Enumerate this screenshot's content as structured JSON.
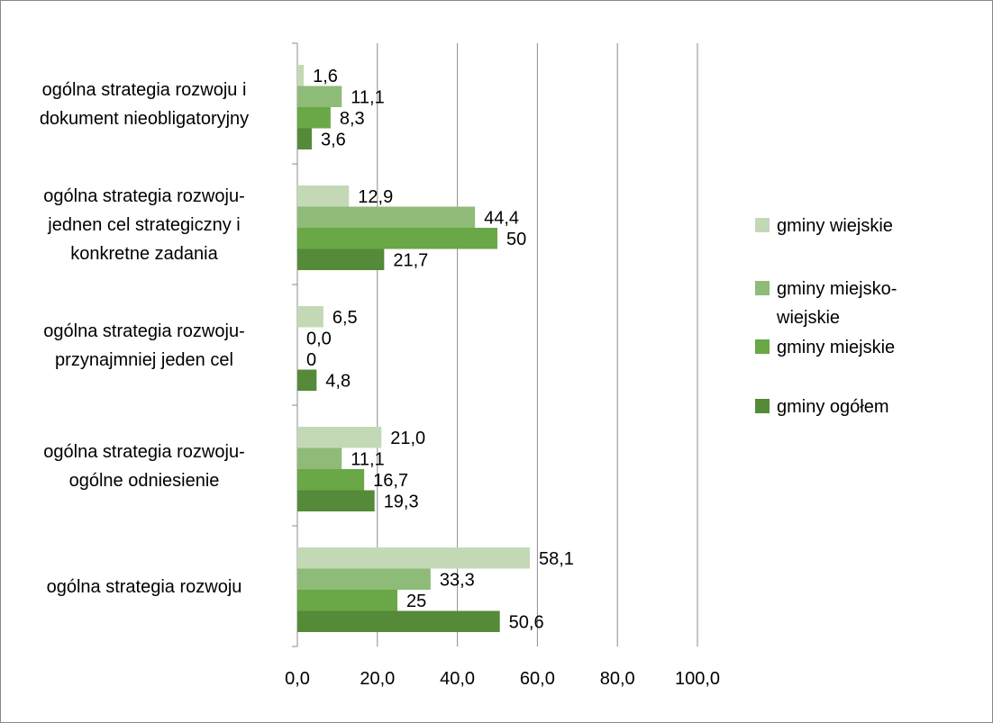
{
  "chart_data": {
    "type": "bar",
    "orientation": "horizontal",
    "categories": [
      [
        "ogólna strategia rozwoju i",
        "dokument nieobligatoryjny"
      ],
      [
        "ogólna strategia rozwoju-",
        "jednen cel strategiczny i",
        "konkretne zadania"
      ],
      [
        "ogólna strategia rozwoju-",
        "przynajmniej jeden cel"
      ],
      [
        "ogólna strategia rozwoju-",
        "ogólne odniesienie"
      ],
      [
        "ogólna strategia rozwoju"
      ]
    ],
    "series": [
      {
        "name": "gminy wiejskie",
        "color": "#c3d9b6",
        "values": [
          1.6,
          12.9,
          6.5,
          21.0,
          58.1
        ],
        "labels": [
          "1,6",
          "12,9",
          "6,5",
          "21,0",
          "58,1"
        ]
      },
      {
        "name": "gminy miejsko-wiejskie",
        "name_lines": [
          "gminy miejsko-",
          "wiejskie"
        ],
        "color": "#8fbb78",
        "values": [
          11.1,
          44.4,
          0.0,
          11.1,
          33.3
        ],
        "labels": [
          "11,1",
          "44,4",
          "0,0",
          "11,1",
          "33,3"
        ]
      },
      {
        "name": "gminy miejskie",
        "color": "#6aa746",
        "values": [
          8.3,
          50,
          0,
          16.7,
          25
        ],
        "labels": [
          "8,3",
          "50",
          "0",
          "16,7",
          "25"
        ]
      },
      {
        "name": "gminy ogółem",
        "color": "#548a38",
        "values": [
          3.6,
          21.7,
          4.8,
          19.3,
          50.6
        ],
        "labels": [
          "3,6",
          "21,7",
          "4,8",
          "19,3",
          "50,6"
        ]
      }
    ],
    "xlim": [
      0,
      100
    ],
    "xticks": [
      0,
      20,
      40,
      60,
      80,
      100
    ],
    "xtick_labels": [
      "0,0",
      "20,0",
      "40,0",
      "60,0",
      "80,0",
      "100,0"
    ],
    "grid": "vertical",
    "legend": "right",
    "title": "",
    "xlabel": "",
    "ylabel": ""
  }
}
